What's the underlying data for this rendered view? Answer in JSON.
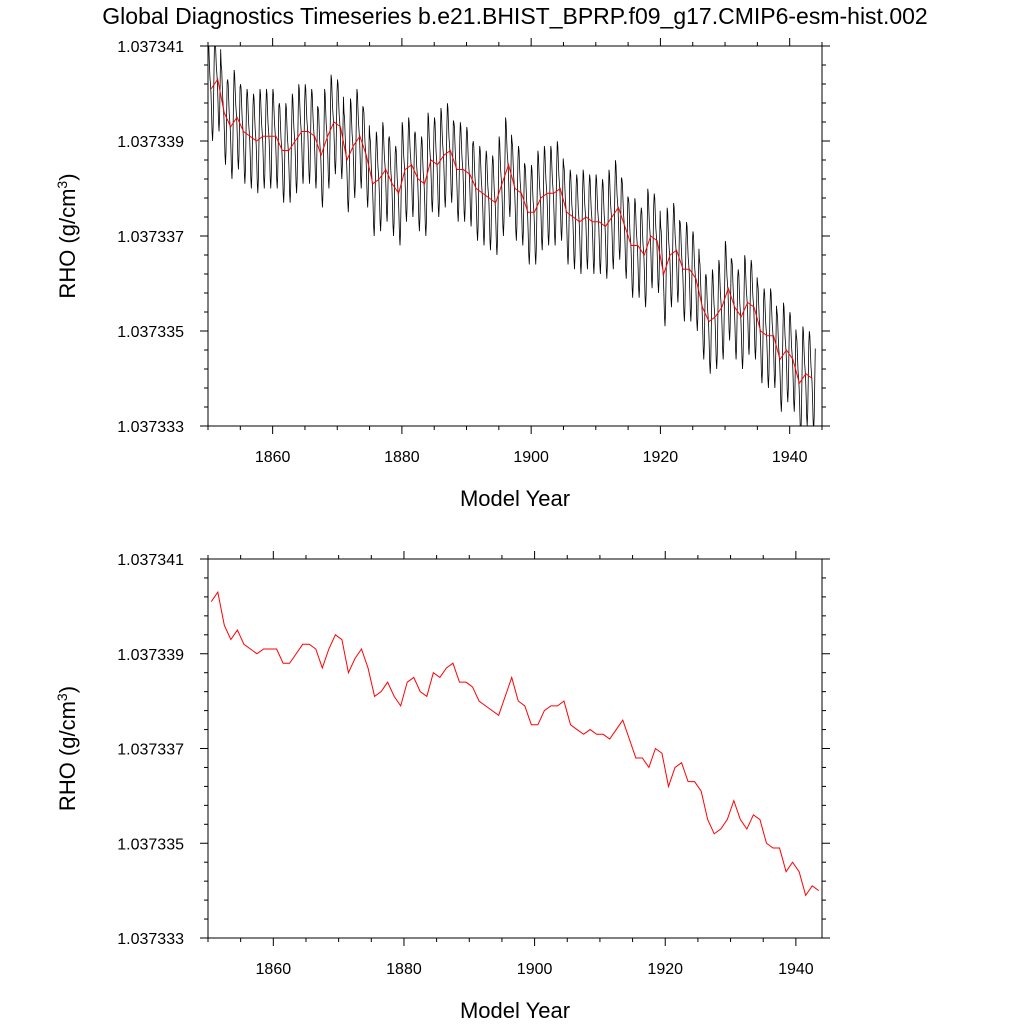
{
  "title": "Global Diagnostics Timeseries b.e21.BHIST_BPRP.f09_g17.CMIP6-esm-hist.002",
  "chart_data": [
    {
      "type": "line",
      "xlabel": "Model Year",
      "ylabel": "RHO (g/cm³)",
      "ylabel_base": "RHO (g/cm",
      "ylabel_sup": "3",
      "ylabel_close": ")",
      "xlim": [
        1850,
        1945
      ],
      "ylim": [
        1.037333,
        1.037341
      ],
      "xticks": [
        1860,
        1880,
        1900,
        1920,
        1940
      ],
      "xtick_labels": [
        "1860",
        "1880",
        "1900",
        "1920",
        "1940"
      ],
      "yticks": [
        1.037333,
        1.037335,
        1.037337,
        1.037339,
        1.037341
      ],
      "ytick_labels": [
        "1.037333",
        "1.037335",
        "1.037337",
        "1.037339",
        "1.037341"
      ],
      "grid": false,
      "series": [
        {
          "kind": "monthly",
          "color": "#000000",
          "seasonal_amplitude": 9e-07,
          "base_series_ref": "annual"
        },
        {
          "kind": "annual",
          "color": "#ff0000"
        }
      ]
    },
    {
      "type": "line",
      "xlabel": "Model Year",
      "ylabel": "RHO (g/cm³)",
      "ylabel_base": "RHO (g/cm",
      "ylabel_sup": "3",
      "ylabel_close": ")",
      "xlim": [
        1850,
        1944
      ],
      "ylim": [
        1.037333,
        1.037341
      ],
      "xticks": [
        1860,
        1880,
        1900,
        1920,
        1940
      ],
      "xtick_labels": [
        "1860",
        "1880",
        "1900",
        "1920",
        "1940"
      ],
      "yticks": [
        1.037333,
        1.037335,
        1.037337,
        1.037339,
        1.037341
      ],
      "ytick_labels": [
        "1.037333",
        "1.037335",
        "1.037337",
        "1.037339",
        "1.037341"
      ],
      "grid": false,
      "series": [
        {
          "kind": "annual",
          "color": "#ff0000"
        }
      ]
    }
  ],
  "annual_series": {
    "x": [
      1850.5,
      1851.5,
      1852.5,
      1853.5,
      1854.5,
      1855.5,
      1856.5,
      1857.5,
      1858.5,
      1859.5,
      1860.5,
      1861.5,
      1862.5,
      1863.5,
      1864.5,
      1865.5,
      1866.5,
      1867.5,
      1868.5,
      1869.5,
      1870.5,
      1871.5,
      1872.5,
      1873.5,
      1874.5,
      1875.5,
      1876.5,
      1877.5,
      1878.5,
      1879.5,
      1880.5,
      1881.5,
      1882.5,
      1883.5,
      1884.5,
      1885.5,
      1886.5,
      1887.5,
      1888.5,
      1889.5,
      1890.5,
      1891.5,
      1892.5,
      1893.5,
      1894.5,
      1895.5,
      1896.5,
      1897.5,
      1898.5,
      1899.5,
      1900.5,
      1901.5,
      1902.5,
      1903.5,
      1904.5,
      1905.5,
      1906.5,
      1907.5,
      1908.5,
      1909.5,
      1910.5,
      1911.5,
      1912.5,
      1913.5,
      1914.5,
      1915.5,
      1916.5,
      1917.5,
      1918.5,
      1919.5,
      1920.5,
      1921.5,
      1922.5,
      1923.5,
      1924.5,
      1925.5,
      1926.5,
      1927.5,
      1928.5,
      1929.5,
      1930.5,
      1931.5,
      1932.5,
      1933.5,
      1934.5,
      1935.5,
      1936.5,
      1937.5,
      1938.5,
      1939.5,
      1940.5,
      1941.5,
      1942.5,
      1943.5
    ],
    "values": [
      1.0373401,
      1.0373403,
      1.0373396,
      1.0373393,
      1.0373395,
      1.0373392,
      1.0373391,
      1.037339,
      1.0373391,
      1.0373391,
      1.0373391,
      1.0373388,
      1.0373388,
      1.037339,
      1.0373392,
      1.0373392,
      1.0373391,
      1.0373387,
      1.0373391,
      1.0373394,
      1.0373393,
      1.0373386,
      1.0373389,
      1.0373391,
      1.0373387,
      1.0373381,
      1.0373382,
      1.0373384,
      1.0373381,
      1.0373379,
      1.0373384,
      1.0373385,
      1.0373382,
      1.0373381,
      1.0373386,
      1.0373385,
      1.0373387,
      1.0373388,
      1.0373384,
      1.0373384,
      1.0373383,
      1.037338,
      1.0373379,
      1.0373378,
      1.0373377,
      1.0373381,
      1.0373385,
      1.037338,
      1.0373379,
      1.0373375,
      1.0373375,
      1.0373378,
      1.0373379,
      1.0373379,
      1.037338,
      1.0373375,
      1.0373374,
      1.0373373,
      1.0373374,
      1.0373373,
      1.0373373,
      1.0373372,
      1.0373374,
      1.0373376,
      1.0373372,
      1.0373368,
      1.0373368,
      1.0373366,
      1.037337,
      1.0373369,
      1.0373362,
      1.0373366,
      1.0373367,
      1.0373363,
      1.0373363,
      1.0373361,
      1.0373355,
      1.0373352,
      1.0373353,
      1.0373355,
      1.0373359,
      1.0373355,
      1.0373353,
      1.0373356,
      1.0373355,
      1.037335,
      1.0373349,
      1.0373349,
      1.0373344,
      1.0373346,
      1.0373344,
      1.0373339,
      1.0373341,
      1.037334
    ]
  }
}
